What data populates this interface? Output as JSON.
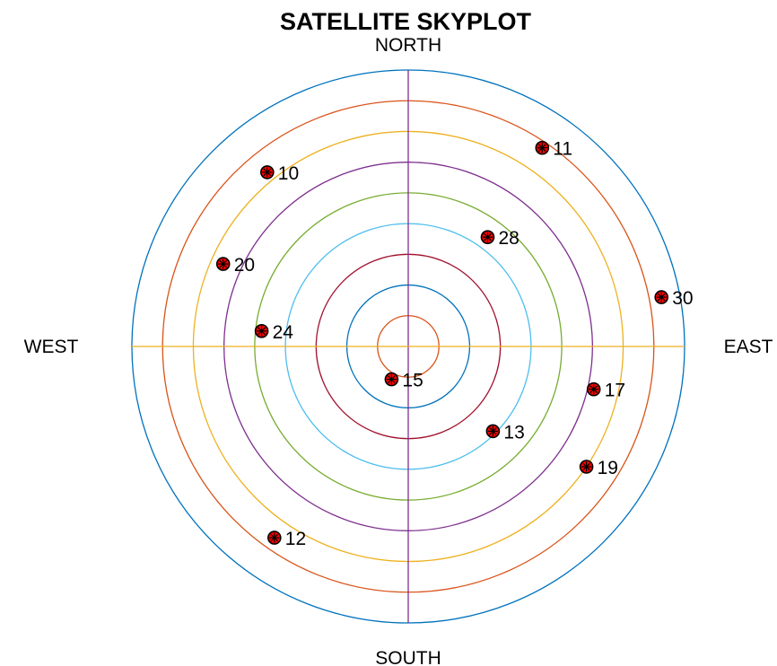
{
  "chart_data": {
    "type": "scatter",
    "title": "SATELLITE SKYPLOT",
    "directions": {
      "north": "NORTH",
      "south": "SOUTH",
      "east": "EAST",
      "west": "WEST"
    },
    "rings": [
      {
        "elevation": 80,
        "color": "#D95319"
      },
      {
        "elevation": 70,
        "color": "#0072BD"
      },
      {
        "elevation": 60,
        "color": "#A2142F"
      },
      {
        "elevation": 50,
        "color": "#4DBEEE"
      },
      {
        "elevation": 40,
        "color": "#77AC30"
      },
      {
        "elevation": 30,
        "color": "#7E2F8E"
      },
      {
        "elevation": 20,
        "color": "#EDB120"
      },
      {
        "elevation": 10,
        "color": "#D95319"
      },
      {
        "elevation": 0,
        "color": "#0072BD"
      }
    ],
    "axis_colors": {
      "north_south": "#7E2F8E",
      "east_west": "#EDB120"
    },
    "marker": {
      "fill": "#FF0000",
      "edge": "#000000"
    },
    "satellites": [
      {
        "prn": "11",
        "azimuth": 34,
        "elevation": 12
      },
      {
        "prn": "10",
        "azimuth": 321,
        "elevation": 17
      },
      {
        "prn": "28",
        "azimuth": 36,
        "elevation": 46
      },
      {
        "prn": "20",
        "azimuth": 294,
        "elevation": 24
      },
      {
        "prn": "30",
        "azimuth": 79,
        "elevation": 6
      },
      {
        "prn": "24",
        "azimuth": 276,
        "elevation": 42
      },
      {
        "prn": "17",
        "azimuth": 103,
        "elevation": 28
      },
      {
        "prn": "15",
        "azimuth": 207,
        "elevation": 78
      },
      {
        "prn": "13",
        "azimuth": 135,
        "elevation": 51
      },
      {
        "prn": "19",
        "azimuth": 124,
        "elevation": 20
      },
      {
        "prn": "12",
        "azimuth": 215,
        "elevation": 14
      }
    ]
  }
}
